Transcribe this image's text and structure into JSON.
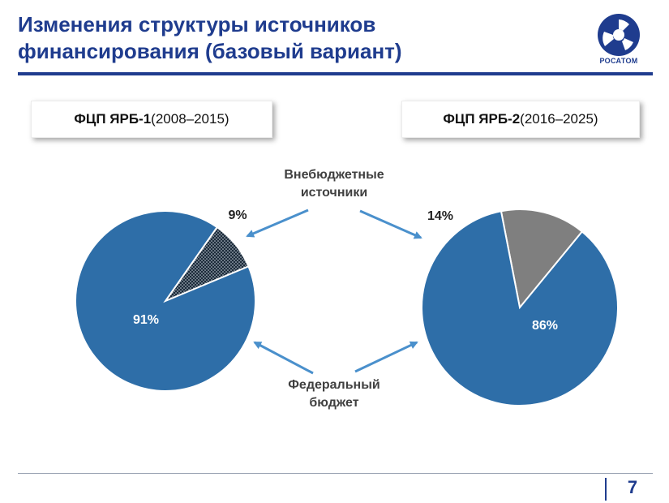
{
  "slide": {
    "title_line1": "Изменения структуры источников",
    "title_line2": "финансирования (базовый вариант)",
    "logo_text": "РОСАТОМ",
    "page_number": "7"
  },
  "annotations": {
    "off_budget_line1": "Внебюджетные",
    "off_budget_line2": "источники",
    "federal_line1": "Федеральный",
    "federal_line2": "бюджет"
  },
  "colors": {
    "title": "#1f3c8e",
    "federal": "#2e6ea8",
    "off_budget_left": "#1c2b3a",
    "off_budget_right": "#7f7f7f",
    "arrow": "#4a90cc"
  },
  "chart_data": [
    {
      "type": "pie",
      "title_bold": "ФЦП ЯРБ-1",
      "title_rest": " (2008–2015)",
      "slices": [
        {
          "label": "9%",
          "value": 9
        },
        {
          "label": "91%",
          "value": 91
        }
      ]
    },
    {
      "type": "pie",
      "title_bold": "ФЦП ЯРБ-2",
      "title_rest": " (2016–2025)",
      "slices": [
        {
          "label": "14%",
          "value": 14
        },
        {
          "label": "86%",
          "value": 86
        }
      ]
    }
  ]
}
